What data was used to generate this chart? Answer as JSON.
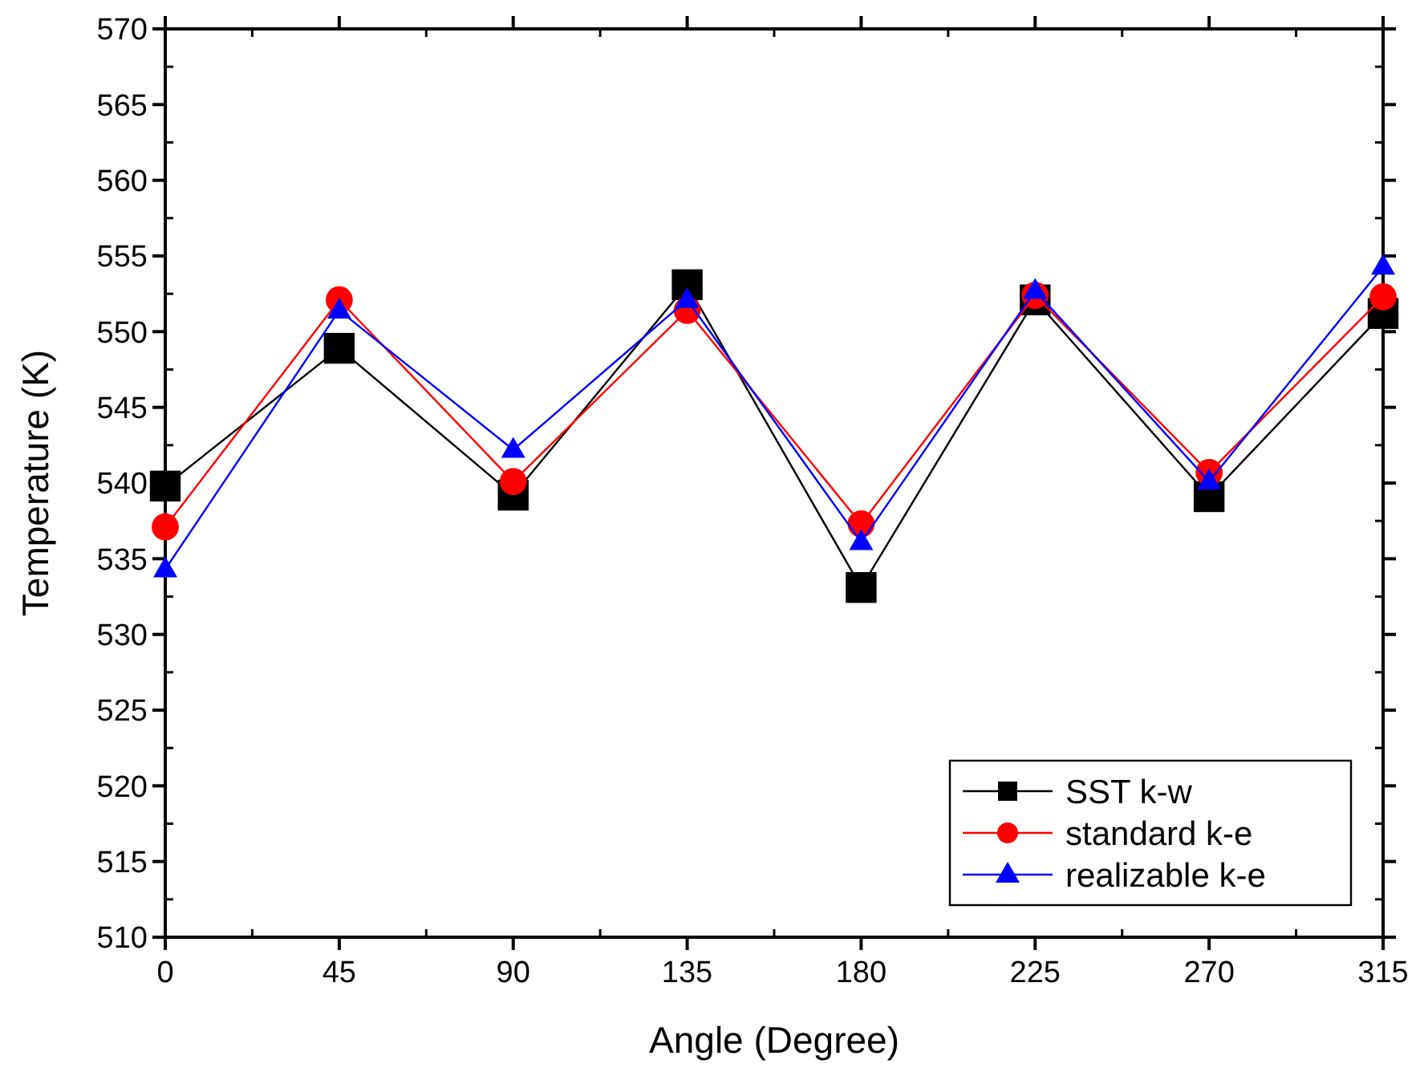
{
  "chart_data": {
    "type": "line",
    "xlabel": "Angle (Degree)",
    "ylabel": "Temperature (K)",
    "x": [
      0,
      45,
      90,
      135,
      180,
      225,
      270,
      315
    ],
    "xlim": [
      0,
      315
    ],
    "xticks": [
      0,
      45,
      90,
      135,
      180,
      225,
      270,
      315
    ],
    "ylim": [
      510,
      570
    ],
    "yticks": [
      510,
      515,
      520,
      525,
      530,
      535,
      540,
      545,
      550,
      555,
      560,
      565,
      570
    ],
    "grid": false,
    "legend": "bottom right",
    "series": [
      {
        "name": "SST k-w",
        "color": "#000000",
        "marker": "square",
        "values": [
          539.8,
          548.9,
          539.2,
          553.1,
          533.1,
          552.1,
          539.1,
          551.2
        ]
      },
      {
        "name": "standard k-e",
        "color": "#ff0000",
        "marker": "circle",
        "values": [
          537.1,
          552.1,
          540.1,
          551.4,
          537.3,
          552.4,
          540.7,
          552.3
        ]
      },
      {
        "name": "realizable k-e",
        "color": "#0000ff",
        "marker": "triangle",
        "values": [
          534.3,
          551.4,
          542.2,
          552.1,
          536.1,
          552.7,
          540.1,
          554.3
        ]
      }
    ]
  }
}
